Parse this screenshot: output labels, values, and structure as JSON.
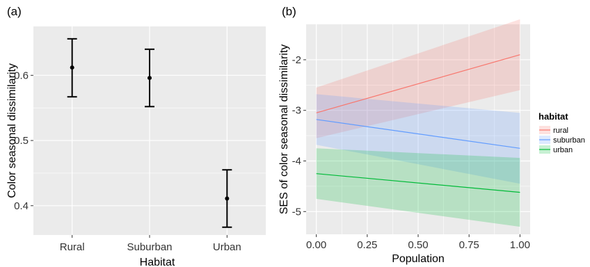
{
  "chart_data": [
    {
      "panel_label": "(a)",
      "type": "scatter",
      "errorbars": true,
      "categories": [
        "Rural",
        "Suburban",
        "Urban"
      ],
      "series": [
        {
          "values": [
            0.612,
            0.596,
            0.411
          ],
          "lower": [
            0.567,
            0.552,
            0.367
          ],
          "upper": [
            0.656,
            0.64,
            0.455
          ]
        }
      ],
      "xlabel": "Habitat",
      "ylabel": "Color seasonal dissimilarity",
      "yticks": [
        "0.4",
        "0.5",
        "0.6"
      ],
      "ytick_values": [
        0.4,
        0.5,
        0.6
      ],
      "ylim": [
        0.355,
        0.675
      ],
      "grid": true,
      "colors": {
        "panel_bg": "#ebebeb",
        "grid": "#ffffff",
        "marks": "#000000"
      }
    },
    {
      "panel_label": "(b)",
      "type": "line",
      "ribbons": true,
      "x": [
        0.0,
        1.0
      ],
      "xticks": [
        "0.00",
        "0.25",
        "0.50",
        "0.75",
        "1.00"
      ],
      "xtick_values": [
        0.0,
        0.25,
        0.5,
        0.75,
        1.0
      ],
      "xlim": [
        -0.05,
        1.05
      ],
      "yticks": [
        "-5",
        "-4",
        "-3",
        "-2"
      ],
      "ytick_values": [
        -5,
        -4,
        -3,
        -2
      ],
      "ylim": [
        -5.45,
        -1.3
      ],
      "xlabel": "Population",
      "ylabel": "SES of color seasonal dissimilarity",
      "grid": true,
      "legend": {
        "title": "habitat",
        "position": "right",
        "entries": [
          "rural",
          "suburban",
          "urban"
        ]
      },
      "series": [
        {
          "name": "rural",
          "values": [
            -3.05,
            -1.9
          ],
          "lower": [
            -3.55,
            -2.6
          ],
          "upper": [
            -2.55,
            -1.2
          ],
          "color": "#f8766d"
        },
        {
          "name": "suburban",
          "values": [
            -3.18,
            -3.75
          ],
          "lower": [
            -3.68,
            -4.45
          ],
          "upper": [
            -2.68,
            -3.05
          ],
          "color": "#619cff"
        },
        {
          "name": "urban",
          "values": [
            -4.25,
            -4.62
          ],
          "lower": [
            -4.75,
            -5.3
          ],
          "upper": [
            -3.75,
            -3.94
          ],
          "color": "#00ba38"
        }
      ],
      "colors": {
        "panel_bg": "#ebebeb",
        "grid": "#ffffff"
      }
    }
  ]
}
